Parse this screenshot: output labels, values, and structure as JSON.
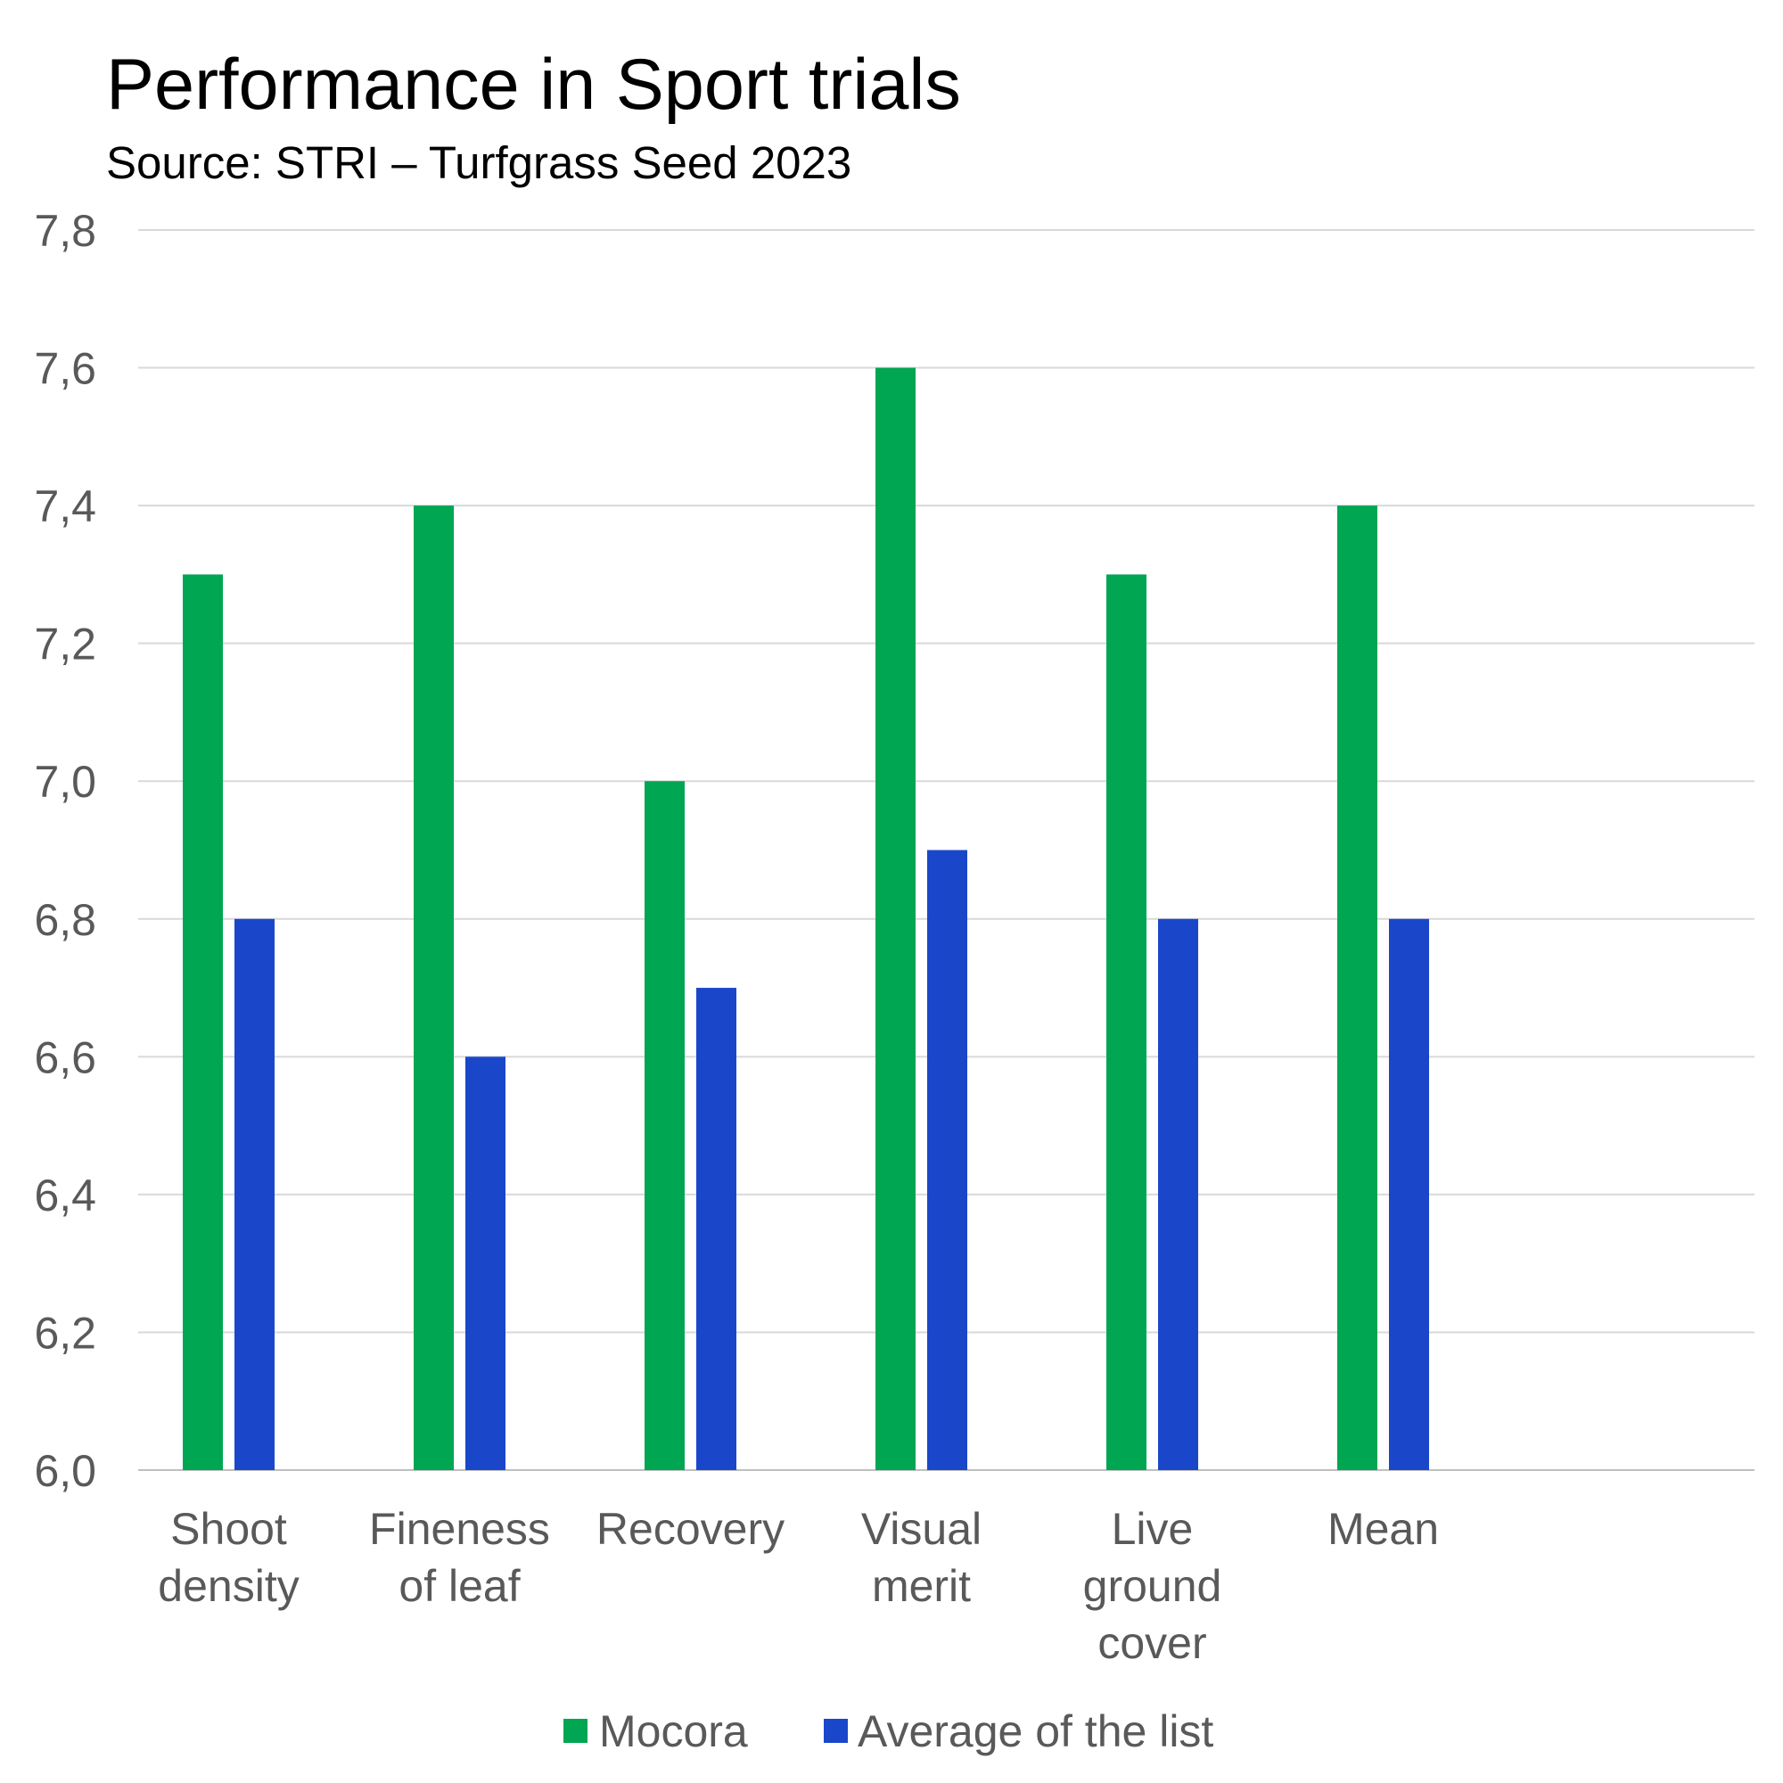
{
  "chart_data": {
    "type": "bar",
    "title": "Performance in Sport trials",
    "subtitle": "Source: STRI – Turfgrass Seed 2023",
    "xlabel": "",
    "ylabel": "",
    "categories": [
      [
        "Shoot",
        "density"
      ],
      [
        "Fineness",
        "of leaf"
      ],
      [
        "Recovery"
      ],
      [
        "Visual",
        "merit"
      ],
      [
        "Live",
        "ground",
        "cover"
      ],
      [
        "Mean"
      ]
    ],
    "series": [
      {
        "name": "Mocora",
        "color": "#00A651",
        "values": [
          7.3,
          7.4,
          7.0,
          7.6,
          7.3,
          7.4
        ]
      },
      {
        "name": "Average of the list",
        "color": "#1A47CA",
        "values": [
          6.8,
          6.6,
          6.7,
          6.9,
          6.8,
          6.8
        ]
      }
    ],
    "ylim": [
      6.0,
      7.8
    ],
    "yticks": [
      "6,0",
      "6,2",
      "6,4",
      "6,6",
      "6,8",
      "7,0",
      "7,2",
      "7,4",
      "7,6",
      "7,8"
    ],
    "grid": true,
    "legend_position": "bottom"
  }
}
